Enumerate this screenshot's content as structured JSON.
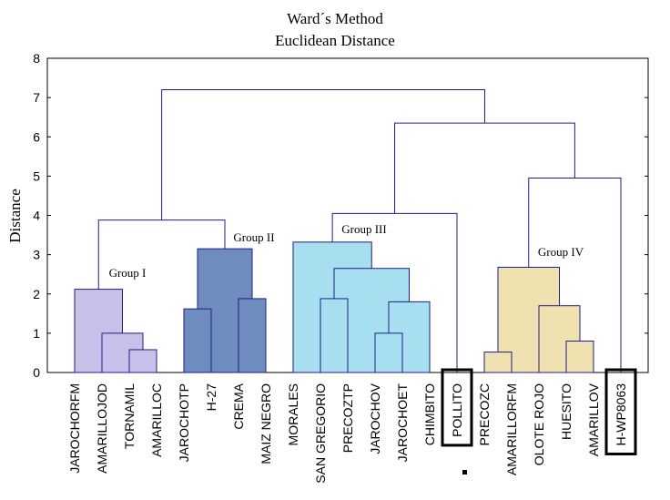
{
  "chart_data": {
    "type": "dendrogram",
    "title": "Ward´s Method",
    "subtitle": "Euclidean Distance",
    "y_label": "Distance",
    "ylim": [
      0,
      8
    ],
    "yticks": [
      0,
      1,
      2,
      3,
      4,
      5,
      6,
      7,
      8
    ],
    "leaves": [
      {
        "label": "JAROCHORFM"
      },
      {
        "label": "AMARILLOJOD"
      },
      {
        "label": "TORNAMIL"
      },
      {
        "label": "AMARILLOC"
      },
      {
        "label": "JAROCHOTP"
      },
      {
        "label": "H-27"
      },
      {
        "label": "CREMA"
      },
      {
        "label": "MAIZ NEGRO"
      },
      {
        "label": "MORALES"
      },
      {
        "label": "SAN GREGORIO"
      },
      {
        "label": "PRECOZTP"
      },
      {
        "label": "JAROCHOV"
      },
      {
        "label": "JAROCHOET"
      },
      {
        "label": "CHIMBITO"
      },
      {
        "label": "POLLITO",
        "boxed": true
      },
      {
        "label": "PRECOZC"
      },
      {
        "label": "AMARILLORFM"
      },
      {
        "label": "OLOTE ROJO"
      },
      {
        "label": "HUESITO"
      },
      {
        "label": "AMARILLOV"
      },
      {
        "label": "H-WP8063",
        "boxed": true
      }
    ],
    "merges": [
      {
        "left": 2,
        "right": 3,
        "height": 0.58,
        "color": "#c8c0e8"
      },
      {
        "left": 1,
        "right": 21,
        "height": 1.0,
        "color": "#c8c0e8"
      },
      {
        "left": 0,
        "right": 22,
        "height": 2.12,
        "color": "#c8c0e8"
      },
      {
        "left": 4,
        "right": 5,
        "height": 1.62,
        "color": "#6f8cbf"
      },
      {
        "left": 6,
        "right": 7,
        "height": 1.88,
        "color": "#6f8cbf"
      },
      {
        "left": 24,
        "right": 25,
        "height": 3.15,
        "color": "#6f8cbf"
      },
      {
        "left": 23,
        "right": 26,
        "height": 3.88
      },
      {
        "left": 9,
        "right": 10,
        "height": 1.88,
        "color": "#a8dff0"
      },
      {
        "left": 11,
        "right": 12,
        "height": 1.0,
        "color": "#a8dff0"
      },
      {
        "left": 29,
        "right": 13,
        "height": 1.8,
        "color": "#a8dff0"
      },
      {
        "left": 28,
        "right": 30,
        "height": 2.65,
        "color": "#a8dff0"
      },
      {
        "left": 8,
        "right": 31,
        "height": 3.32,
        "color": "#a8dff0"
      },
      {
        "left": 32,
        "right": 14,
        "height": 4.05
      },
      {
        "left": 15,
        "right": 16,
        "height": 0.52,
        "color": "#efe2b0"
      },
      {
        "left": 18,
        "right": 19,
        "height": 0.8,
        "color": "#efe2b0"
      },
      {
        "left": 17,
        "right": 35,
        "height": 1.7,
        "color": "#efe2b0"
      },
      {
        "left": 34,
        "right": 36,
        "height": 2.68,
        "color": "#efe2b0"
      },
      {
        "left": 37,
        "right": 20,
        "height": 4.95
      },
      {
        "left": 33,
        "right": 38,
        "height": 6.35
      },
      {
        "left": 27,
        "right": 39,
        "height": 7.2
      }
    ],
    "annotations": [
      "Group I",
      "Group II",
      "Group III",
      "Group IV"
    ],
    "line_color": "#1c1c8a"
  }
}
